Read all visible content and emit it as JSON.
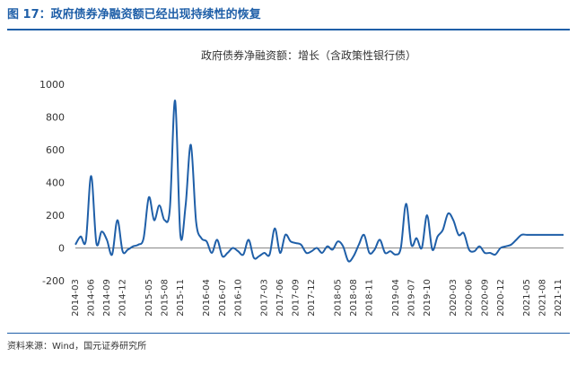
{
  "figure_title": "图 17：政府债券净融资额已经出现持续性的恢复",
  "source_note": "资料来源：Wind，国元证券研究所",
  "colors": {
    "accent": "#1f5fa8",
    "series_line": "#1f5fa8",
    "axis": "#888888",
    "text": "#333333"
  },
  "chart_data": {
    "type": "line",
    "title": "政府债券净融资额：增长（含政策性银行债）",
    "xlabel": "",
    "ylabel": "",
    "ylim": [
      -200,
      1000
    ],
    "yticks": [
      -200,
      0,
      200,
      400,
      600,
      800,
      1000
    ],
    "grid": false,
    "legend": "none",
    "x_tick_labels": [
      "2014-03",
      "2014-06",
      "2014-09",
      "2014-12",
      "2015-05",
      "2015-08",
      "2015-11",
      "2016-04",
      "2016-07",
      "2016-10",
      "2017-03",
      "2017-06",
      "2017-09",
      "2017-12",
      "2018-05",
      "2018-08",
      "2018-11",
      "2019-04",
      "2019-07",
      "2019-10",
      "2020-03",
      "2020-06",
      "2020-09",
      "2020-12",
      "2021-05",
      "2021-08",
      "2021-11"
    ],
    "x": [
      "2014-03",
      "2014-04",
      "2014-05",
      "2014-06",
      "2014-07",
      "2014-08",
      "2014-09",
      "2014-10",
      "2014-11",
      "2014-12",
      "2015-01",
      "2015-02",
      "2015-03",
      "2015-04",
      "2015-05",
      "2015-06",
      "2015-07",
      "2015-08",
      "2015-09",
      "2015-10",
      "2015-11",
      "2015-12",
      "2016-01",
      "2016-02",
      "2016-03",
      "2016-04",
      "2016-05",
      "2016-06",
      "2016-07",
      "2016-08",
      "2016-09",
      "2016-10",
      "2016-11",
      "2016-12",
      "2017-01",
      "2017-02",
      "2017-03",
      "2017-04",
      "2017-05",
      "2017-06",
      "2017-07",
      "2017-08",
      "2017-09",
      "2017-10",
      "2017-11",
      "2017-12",
      "2018-01",
      "2018-02",
      "2018-03",
      "2018-04",
      "2018-05",
      "2018-06",
      "2018-07",
      "2018-08",
      "2018-09",
      "2018-10",
      "2018-11",
      "2018-12",
      "2019-01",
      "2019-02",
      "2019-03",
      "2019-04",
      "2019-05",
      "2019-06",
      "2019-07",
      "2019-08",
      "2019-09",
      "2019-10",
      "2019-11",
      "2019-12",
      "2020-01",
      "2020-02",
      "2020-03",
      "2020-04",
      "2020-05",
      "2020-06",
      "2020-07",
      "2020-08",
      "2020-09",
      "2020-10",
      "2020-11",
      "2020-12",
      "2021-01",
      "2021-02",
      "2021-03",
      "2021-04",
      "2021-05",
      "2021-06",
      "2021-07",
      "2021-08",
      "2021-09",
      "2021-10",
      "2021-11",
      "2021-12"
    ],
    "series": [
      {
        "values": [
          20,
          70,
          45,
          440,
          30,
          100,
          50,
          -40,
          170,
          -20,
          -10,
          10,
          20,
          60,
          310,
          170,
          260,
          170,
          240,
          900,
          80,
          260,
          630,
          160,
          60,
          40,
          -30,
          50,
          -50,
          -30,
          0,
          -20,
          -40,
          50,
          -60,
          -50,
          -30,
          -40,
          120,
          -30,
          80,
          40,
          30,
          20,
          -30,
          -20,
          0,
          -30,
          10,
          -10,
          40,
          10,
          -80,
          -50,
          20,
          80,
          -30,
          -10,
          50,
          -30,
          -20,
          -40,
          0,
          270,
          20,
          60,
          0,
          200,
          -10,
          70,
          110,
          210,
          170,
          80,
          90,
          -10,
          -20,
          10,
          -30,
          -30,
          -40,
          0,
          10,
          20,
          50,
          80,
          80,
          80,
          80,
          80,
          80,
          80,
          80,
          80
        ]
      }
    ]
  }
}
